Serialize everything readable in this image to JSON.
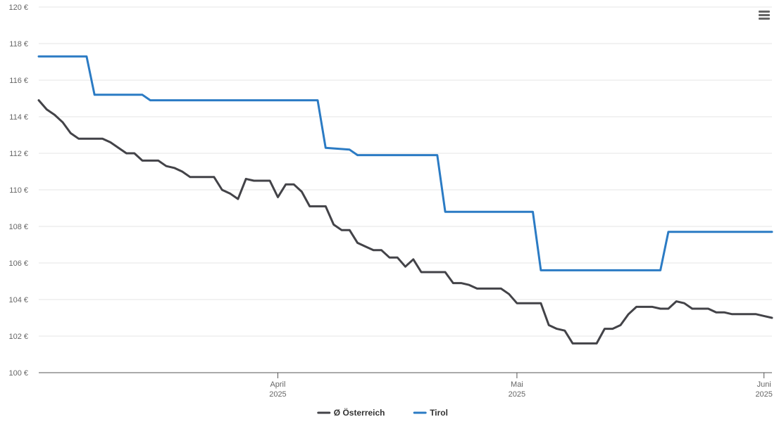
{
  "chart_data": {
    "type": "line",
    "ylim": [
      100,
      120
    ],
    "y_ticks": [
      100,
      102,
      104,
      106,
      108,
      110,
      112,
      114,
      116,
      118,
      120
    ],
    "y_tick_suffix": " €",
    "x_range": [
      "2025-03-02",
      "2025-06-02"
    ],
    "x_ticks": [
      {
        "date": "2025-04-01",
        "label": "April",
        "year": "2025"
      },
      {
        "date": "2025-05-01",
        "label": "Mai",
        "year": "2025"
      },
      {
        "date": "2025-06-01",
        "label": "Juni",
        "year": "2025"
      }
    ],
    "grid": true,
    "legend_position": "bottom-center",
    "series": [
      {
        "name": "Ø Österreich",
        "color": "#434348",
        "points": [
          [
            "2025-03-02",
            114.9
          ],
          [
            "2025-03-03",
            114.4
          ],
          [
            "2025-03-04",
            114.1
          ],
          [
            "2025-03-05",
            113.7
          ],
          [
            "2025-03-06",
            113.1
          ],
          [
            "2025-03-07",
            112.8
          ],
          [
            "2025-03-08",
            112.8
          ],
          [
            "2025-03-09",
            112.8
          ],
          [
            "2025-03-10",
            112.8
          ],
          [
            "2025-03-11",
            112.6
          ],
          [
            "2025-03-12",
            112.3
          ],
          [
            "2025-03-13",
            112.0
          ],
          [
            "2025-03-14",
            112.0
          ],
          [
            "2025-03-15",
            111.6
          ],
          [
            "2025-03-16",
            111.6
          ],
          [
            "2025-03-17",
            111.6
          ],
          [
            "2025-03-18",
            111.3
          ],
          [
            "2025-03-19",
            111.2
          ],
          [
            "2025-03-20",
            111.0
          ],
          [
            "2025-03-21",
            110.7
          ],
          [
            "2025-03-22",
            110.7
          ],
          [
            "2025-03-23",
            110.7
          ],
          [
            "2025-03-24",
            110.7
          ],
          [
            "2025-03-25",
            110.0
          ],
          [
            "2025-03-26",
            109.8
          ],
          [
            "2025-03-27",
            109.5
          ],
          [
            "2025-03-28",
            110.6
          ],
          [
            "2025-03-29",
            110.5
          ],
          [
            "2025-03-30",
            110.5
          ],
          [
            "2025-03-31",
            110.5
          ],
          [
            "2025-04-01",
            109.6
          ],
          [
            "2025-04-02",
            110.3
          ],
          [
            "2025-04-03",
            110.3
          ],
          [
            "2025-04-04",
            109.9
          ],
          [
            "2025-04-05",
            109.1
          ],
          [
            "2025-04-06",
            109.1
          ],
          [
            "2025-04-07",
            109.1
          ],
          [
            "2025-04-08",
            108.1
          ],
          [
            "2025-04-09",
            107.8
          ],
          [
            "2025-04-10",
            107.8
          ],
          [
            "2025-04-11",
            107.1
          ],
          [
            "2025-04-12",
            106.9
          ],
          [
            "2025-04-13",
            106.7
          ],
          [
            "2025-04-14",
            106.7
          ],
          [
            "2025-04-15",
            106.3
          ],
          [
            "2025-04-16",
            106.3
          ],
          [
            "2025-04-17",
            105.8
          ],
          [
            "2025-04-18",
            106.2
          ],
          [
            "2025-04-19",
            105.5
          ],
          [
            "2025-04-20",
            105.5
          ],
          [
            "2025-04-21",
            105.5
          ],
          [
            "2025-04-22",
            105.5
          ],
          [
            "2025-04-23",
            104.9
          ],
          [
            "2025-04-24",
            104.9
          ],
          [
            "2025-04-25",
            104.8
          ],
          [
            "2025-04-26",
            104.6
          ],
          [
            "2025-04-27",
            104.6
          ],
          [
            "2025-04-28",
            104.6
          ],
          [
            "2025-04-29",
            104.6
          ],
          [
            "2025-04-30",
            104.3
          ],
          [
            "2025-05-01",
            103.8
          ],
          [
            "2025-05-02",
            103.8
          ],
          [
            "2025-05-03",
            103.8
          ],
          [
            "2025-05-04",
            103.8
          ],
          [
            "2025-05-05",
            102.6
          ],
          [
            "2025-05-06",
            102.4
          ],
          [
            "2025-05-07",
            102.3
          ],
          [
            "2025-05-08",
            101.6
          ],
          [
            "2025-05-09",
            101.6
          ],
          [
            "2025-05-10",
            101.6
          ],
          [
            "2025-05-11",
            101.6
          ],
          [
            "2025-05-12",
            102.4
          ],
          [
            "2025-05-13",
            102.4
          ],
          [
            "2025-05-14",
            102.6
          ],
          [
            "2025-05-15",
            103.2
          ],
          [
            "2025-05-16",
            103.6
          ],
          [
            "2025-05-17",
            103.6
          ],
          [
            "2025-05-18",
            103.6
          ],
          [
            "2025-05-19",
            103.5
          ],
          [
            "2025-05-20",
            103.5
          ],
          [
            "2025-05-21",
            103.9
          ],
          [
            "2025-05-22",
            103.8
          ],
          [
            "2025-05-23",
            103.5
          ],
          [
            "2025-05-24",
            103.5
          ],
          [
            "2025-05-25",
            103.5
          ],
          [
            "2025-05-26",
            103.3
          ],
          [
            "2025-05-27",
            103.3
          ],
          [
            "2025-05-28",
            103.2
          ],
          [
            "2025-05-29",
            103.2
          ],
          [
            "2025-05-30",
            103.2
          ],
          [
            "2025-05-31",
            103.2
          ],
          [
            "2025-06-01",
            103.1
          ],
          [
            "2025-06-02",
            103.0
          ]
        ]
      },
      {
        "name": "Tirol",
        "color": "#2b7bc4",
        "points": [
          [
            "2025-03-02",
            117.3
          ],
          [
            "2025-03-08",
            117.3
          ],
          [
            "2025-03-09",
            115.2
          ],
          [
            "2025-03-15",
            115.2
          ],
          [
            "2025-03-16",
            114.9
          ],
          [
            "2025-04-06",
            114.9
          ],
          [
            "2025-04-07",
            112.3
          ],
          [
            "2025-04-10",
            112.2
          ],
          [
            "2025-04-11",
            111.9
          ],
          [
            "2025-04-21",
            111.9
          ],
          [
            "2025-04-22",
            108.8
          ],
          [
            "2025-05-03",
            108.8
          ],
          [
            "2025-05-04",
            105.6
          ],
          [
            "2025-05-19",
            105.6
          ],
          [
            "2025-05-20",
            107.7
          ],
          [
            "2025-06-02",
            107.7
          ]
        ]
      }
    ]
  }
}
